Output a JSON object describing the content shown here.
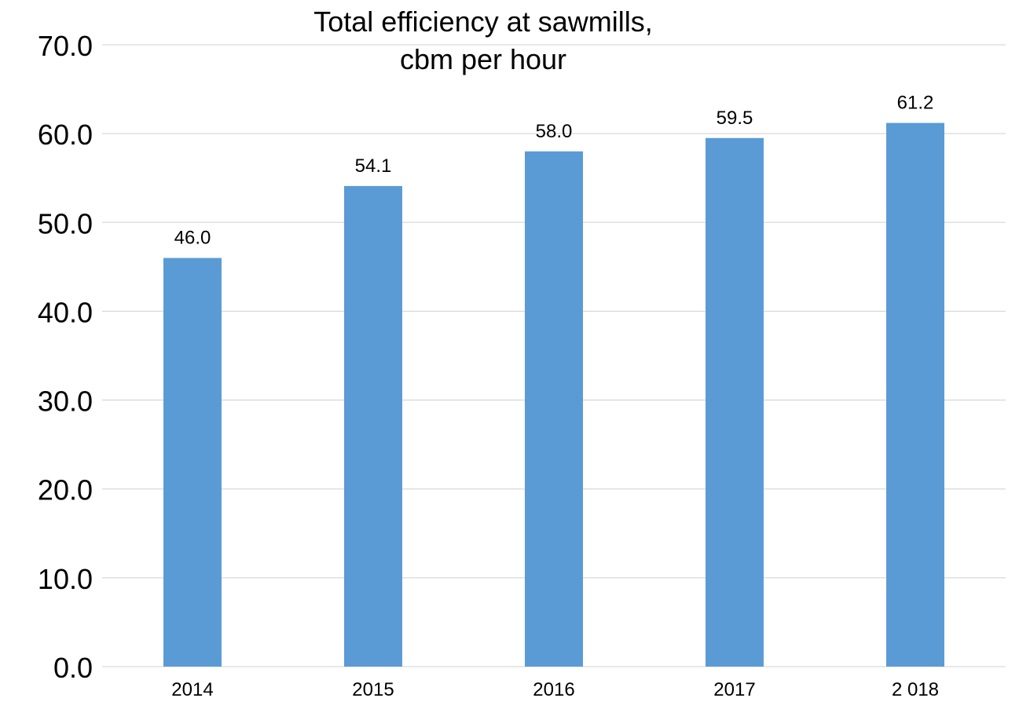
{
  "chart_data": {
    "type": "bar",
    "title_lines": [
      "Total efficiency at sawmills,",
      "cbm per hour"
    ],
    "categories": [
      "2014",
      "2015",
      "2016",
      "2017",
      "2 018"
    ],
    "values": [
      46.0,
      54.1,
      58.0,
      59.5,
      61.2
    ],
    "value_labels": [
      "46.0",
      "54.1",
      "58.0",
      "59.5",
      "61.2"
    ],
    "yticks": [
      "0.0",
      "10.0",
      "20.0",
      "30.0",
      "40.0",
      "50.0",
      "60.0",
      "70.0"
    ],
    "ylim": [
      0,
      70
    ],
    "grid": true,
    "legend": "none",
    "colors": {
      "bar": "#5b9bd5",
      "grid": "#d9d9d9",
      "text": "#000000"
    }
  }
}
